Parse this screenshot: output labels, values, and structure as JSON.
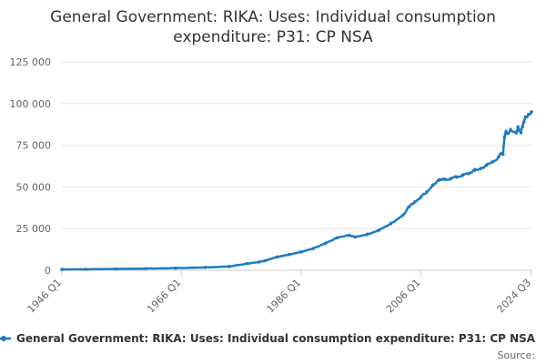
{
  "chart_data": {
    "type": "line",
    "title_line1": "General Government: RIKA: Uses: Individual consumption",
    "title_line2": "expenditure: P31: CP NSA",
    "x_ticks": [
      "1946 Q1",
      "1966 Q1",
      "1986 Q1",
      "2006 Q1",
      "2024 Q3"
    ],
    "y_ticks": [
      "0",
      "25 000",
      "50 000",
      "75 000",
      "100 000",
      "125 000"
    ],
    "ylim": [
      0,
      125000
    ],
    "xlim": [
      1946.0,
      2024.5
    ],
    "grid": true,
    "legend_position": "bottom",
    "series": [
      {
        "name": "General Government: RIKA: Uses: Individual consumption expenditure: P31: CP NSA",
        "color": "#1f7bbf",
        "x": [
          1946,
          1950,
          1955,
          1960,
          1965,
          1970,
          1974,
          1977,
          1979,
          1980,
          1982,
          1984,
          1986,
          1988,
          1990,
          1992,
          1994,
          1995,
          1997,
          1999,
          2001,
          2003,
          2004,
          2005,
          2006,
          2007,
          2008,
          2009,
          2010,
          2011,
          2012,
          2013,
          2014,
          2015,
          2016,
          2017,
          2018,
          2019,
          2019.5,
          2019.75,
          2020,
          2020.25,
          2020.5,
          2021,
          2022,
          2022.25,
          2022.5,
          2022.75,
          2023,
          2023.25,
          2023.5,
          2024,
          2024.5
        ],
        "y": [
          500,
          600,
          800,
          1000,
          1300,
          1700,
          2300,
          4000,
          5000,
          5800,
          8000,
          9500,
          11000,
          13000,
          16000,
          19500,
          21000,
          20000,
          21500,
          24000,
          28000,
          33000,
          38000,
          41000,
          44000,
          47000,
          51000,
          54000,
          54500,
          55000,
          56000,
          57000,
          58000,
          60000,
          61000,
          63000,
          65000,
          68000,
          70000,
          69500,
          80000,
          83000,
          82000,
          84000,
          83000,
          86000,
          84000,
          82500,
          86000,
          89000,
          92000,
          93500,
          95000
        ]
      }
    ]
  },
  "source_label": "Source:"
}
